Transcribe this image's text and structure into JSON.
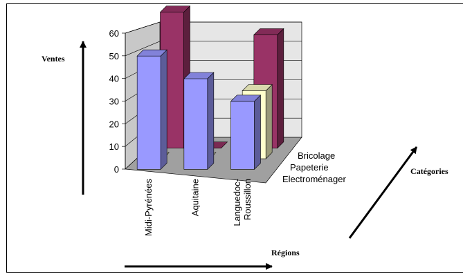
{
  "chart_data": {
    "type": "bar",
    "subtype": "3d-clustered-column",
    "title": "",
    "xlabel": "Régions",
    "ylabel": "Ventes",
    "zlabel": "Catégories",
    "ylim": [
      0,
      60
    ],
    "yticks": [
      0,
      10,
      20,
      30,
      40,
      50,
      60
    ],
    "categories": [
      "Midi-Pyrénées",
      "Aquitaine",
      "Languedoc-\nRoussillon"
    ],
    "series": [
      {
        "name": "Electroménager",
        "values": [
          50,
          40,
          30
        ],
        "color": "#9999ff"
      },
      {
        "name": "Papeterie",
        "values": [
          0,
          0,
          30
        ],
        "color": "#ffffcc"
      },
      {
        "name": "Bricolage",
        "values": [
          60,
          0,
          50
        ],
        "color": "#993366"
      }
    ],
    "grid": true
  }
}
